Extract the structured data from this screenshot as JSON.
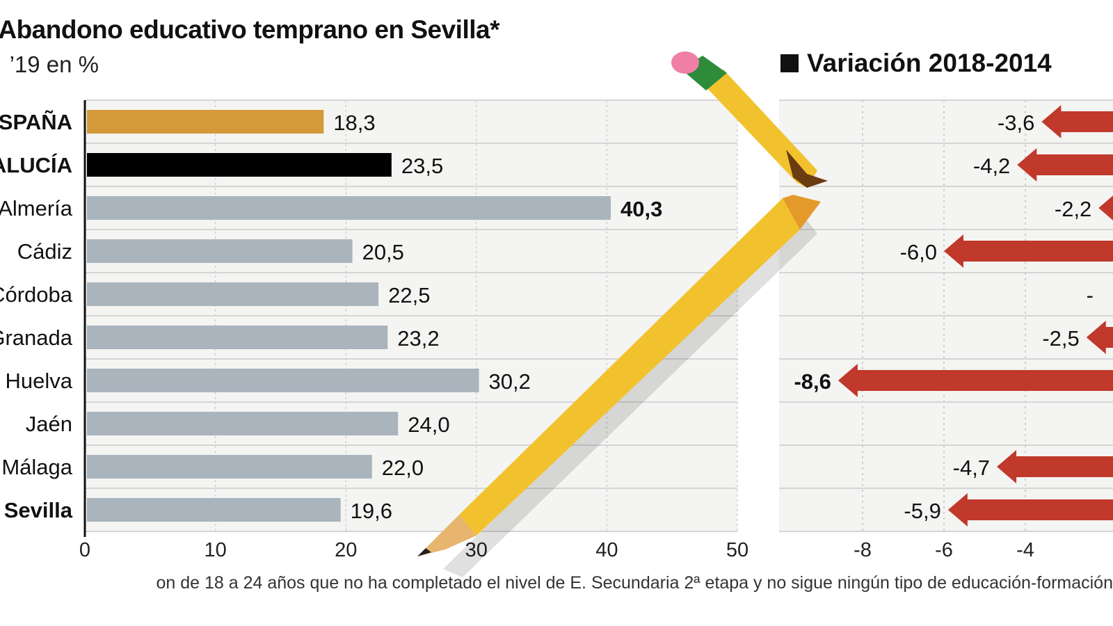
{
  "title": "Abandono educativo temprano en Sevilla*",
  "subtitle": "’19 en %",
  "footnote": "on de 18 a 24 años que no ha completado el nivel de E. Secundaria 2ª etapa y no sigue ningún tipo de educación-formación",
  "chart_data": [
    {
      "type": "bar",
      "orientation": "horizontal",
      "categories": [
        "ESPAÑA",
        "ANDALUCÍA",
        "Almería",
        "Cádiz",
        "Córdoba",
        "Granada",
        "Huelva",
        "Jaén",
        "Málaga",
        "Sevilla"
      ],
      "values": [
        18.3,
        23.5,
        40.3,
        20.5,
        22.5,
        23.2,
        30.2,
        24.0,
        22.0,
        19.6
      ],
      "value_labels": [
        "18,3",
        "23,5",
        "40,3",
        "20,5",
        "22,5",
        "23,2",
        "30,2",
        "24,0",
        "22,0",
        "19,6"
      ],
      "xlim": [
        0,
        50
      ],
      "xticks": [
        "0",
        "10",
        "20",
        "30",
        "40",
        "50"
      ],
      "grid": true,
      "colors": {
        "ESPAÑA": "#d4993a",
        "ANDALUCÍA": "#000000",
        "default": "#aab4bd"
      }
    },
    {
      "type": "bar",
      "orientation": "horizontal-arrows",
      "title": "Variación 2018-2014",
      "categories": [
        "ESPAÑA",
        "ANDALUCÍA",
        "Almería",
        "Cádiz",
        "Córdoba",
        "Granada",
        "Huelva",
        "Jaén",
        "Málaga",
        "Sevilla"
      ],
      "values": [
        -3.6,
        -4.2,
        -2.2,
        -6.0,
        null,
        -2.5,
        -8.6,
        null,
        -4.7,
        -5.9
      ],
      "value_labels": [
        "-3,6",
        "-4,2",
        "-2,2",
        "-6,0",
        "-",
        "-2,5",
        "-8,6",
        "",
        "-4,7",
        "-5,9"
      ],
      "xticks": [
        "-8",
        "-6",
        "-4"
      ],
      "xlim": [
        -9,
        -2
      ],
      "grid": true,
      "color": "#c0392b"
    }
  ]
}
